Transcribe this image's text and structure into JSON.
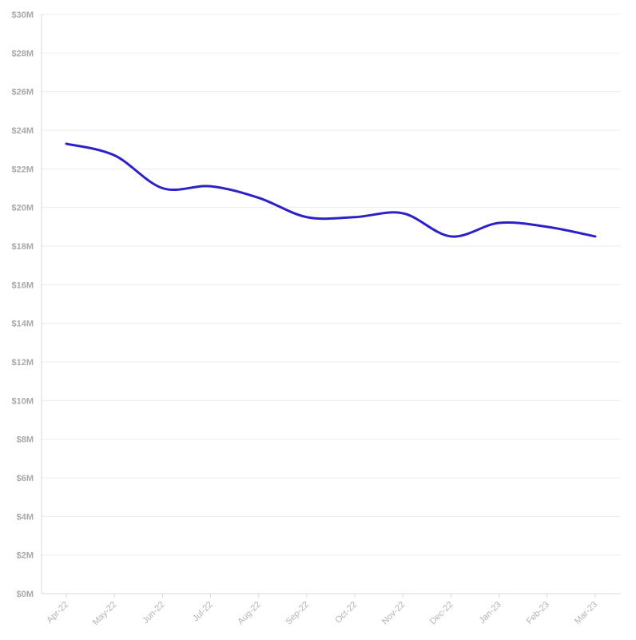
{
  "chart_data": {
    "type": "line",
    "title": "",
    "xlabel": "",
    "ylabel": "",
    "x": [
      "Apr-22",
      "May-22",
      "Jun-22",
      "Jul-22",
      "Aug-22",
      "Sep-22",
      "Oct-22",
      "Nov-22",
      "Dec-22",
      "Jan-23",
      "Feb-23",
      "Mar-23"
    ],
    "y_ticks": [
      "$0M",
      "$2M",
      "$4M",
      "$6M",
      "$8M",
      "$10M",
      "$12M",
      "$14M",
      "$16M",
      "$18M",
      "$20M",
      "$22M",
      "$24M",
      "$26M",
      "$28M",
      "$30M"
    ],
    "ylim": [
      0,
      30
    ],
    "y_unit": "M",
    "grid": true,
    "series": [
      {
        "color": "#2b21c6",
        "values": [
          23.3,
          22.7,
          21.0,
          21.1,
          20.5,
          19.5,
          19.5,
          19.7,
          18.5,
          19.2,
          19.0,
          18.5
        ]
      }
    ]
  }
}
